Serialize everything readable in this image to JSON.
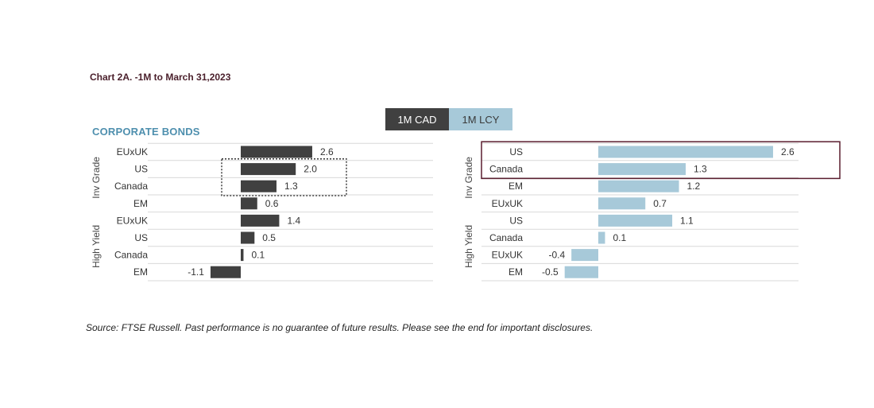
{
  "title": "Chart 2A. -1M to March 31,2023",
  "section_title": "CORPORATE BONDS",
  "legend": {
    "cad": "1M CAD",
    "lcy": "1M LCY"
  },
  "source": "Source: FTSE Russell. Past performance is no guarantee of future results. Please see the end for important disclosures.",
  "colors": {
    "cad_bar": "#404040",
    "lcy_bar": "#a7c9d9",
    "highlight_border": "#5a1d2e",
    "grid": "#d9d9d9"
  },
  "chart_data": [
    {
      "type": "bar",
      "orientation": "horizontal",
      "name": "1M CAD",
      "groups": [
        "Inv Grade",
        "High Yield"
      ],
      "categories": [
        "EUxUK",
        "US",
        "Canada",
        "EM",
        "EUxUK",
        "US",
        "Canada",
        "EM"
      ],
      "group_of_category": [
        "Inv Grade",
        "Inv Grade",
        "Inv Grade",
        "Inv Grade",
        "High Yield",
        "High Yield",
        "High Yield",
        "High Yield"
      ],
      "values": [
        2.6,
        2.0,
        1.3,
        0.6,
        1.4,
        0.5,
        0.1,
        -1.1
      ],
      "labels": [
        "2.6",
        "2.0",
        "1.3",
        "0.6",
        "1.4",
        "0.5",
        "0.1",
        "-1.1"
      ],
      "highlighted": [
        "US",
        "Canada"
      ],
      "highlight_style": "dotted",
      "xlim": [
        -1.1,
        2.6
      ]
    },
    {
      "type": "bar",
      "orientation": "horizontal",
      "name": "1M LCY",
      "groups": [
        "Inv Grade",
        "High Yield"
      ],
      "categories": [
        "US",
        "Canada",
        "EM",
        "EUxUK",
        "US",
        "Canada",
        "EUxUK",
        "EM"
      ],
      "group_of_category": [
        "Inv Grade",
        "Inv Grade",
        "Inv Grade",
        "Inv Grade",
        "High Yield",
        "High Yield",
        "High Yield",
        "High Yield"
      ],
      "values": [
        2.6,
        1.3,
        1.2,
        0.7,
        1.1,
        0.1,
        -0.4,
        -0.5
      ],
      "labels": [
        "2.6",
        "1.3",
        "1.2",
        "0.7",
        "1.1",
        "0.1",
        "-0.4",
        "-0.5"
      ],
      "highlighted": [
        "US",
        "Canada"
      ],
      "highlight_style": "solid",
      "xlim": [
        -0.5,
        2.6
      ]
    }
  ]
}
